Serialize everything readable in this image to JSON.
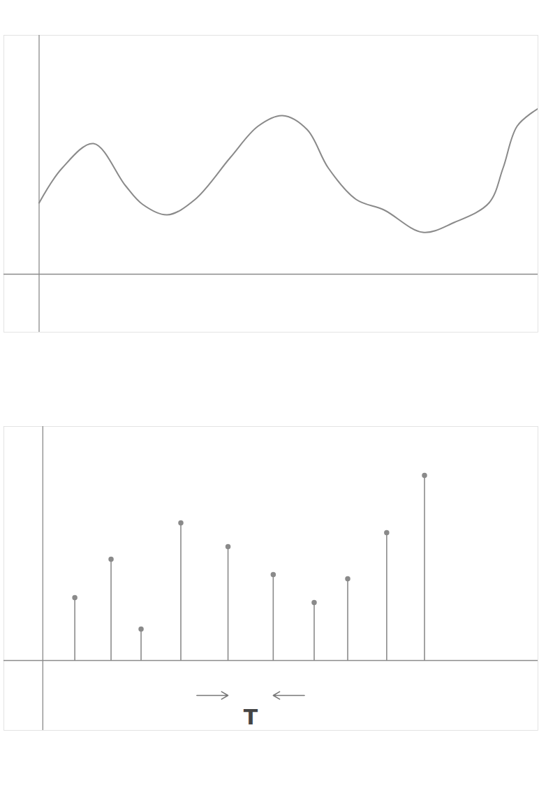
{
  "chart_data": [
    {
      "type": "line",
      "color": "#8a8a8a",
      "x": [
        0,
        0.59,
        1.39,
        2.2,
        2.64,
        3.27,
        3.98,
        4.88,
        5.59,
        6.21,
        6.84,
        7.38,
        8.09,
        8.8,
        9.79,
        10.59,
        11.48,
        11.84,
        12.2,
        12.73
      ],
      "values": [
        1.02,
        1.52,
        1.87,
        1.27,
        1.0,
        0.85,
        1.07,
        1.67,
        2.12,
        2.27,
        2.07,
        1.52,
        1.07,
        0.92,
        0.6,
        0.74,
        1.02,
        1.52,
        2.12,
        2.37
      ],
      "xlim": [
        -0.9,
        12.73
      ],
      "ylim": [
        -0.83,
        3.42
      ],
      "xticks": [],
      "yticks": [],
      "tick_labels": false,
      "grid": false
    },
    {
      "type": "stem",
      "color": "#8a8a8a",
      "x": [
        0.82,
        1.75,
        2.52,
        3.54,
        4.75,
        5.91,
        6.96,
        7.82,
        8.82,
        9.79
      ],
      "values": [
        0.9,
        1.45,
        0.45,
        1.97,
        1.63,
        1.23,
        0.83,
        1.17,
        1.83,
        2.65
      ],
      "xlim": [
        -1.0,
        12.7
      ],
      "ylim": [
        -1.0,
        3.35
      ],
      "xticks": [],
      "yticks": [],
      "tick_labels": false,
      "grid": false,
      "annotation": {
        "text": "T",
        "from": 4.75,
        "to": 5.91
      }
    }
  ]
}
